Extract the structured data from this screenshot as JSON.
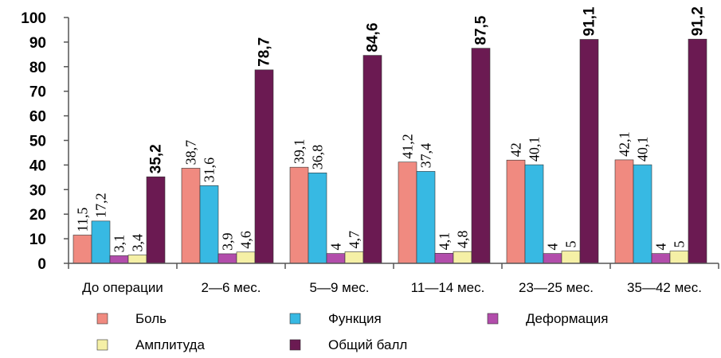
{
  "chart_data": {
    "type": "bar",
    "categories": [
      "До операции",
      "2—6 мес.",
      "5—9 мес.",
      "11—14 мес.",
      "23—25 мес.",
      "35—42 мес."
    ],
    "ylim": [
      0,
      100
    ],
    "yticks": [
      0,
      10,
      20,
      30,
      40,
      50,
      60,
      70,
      80,
      90,
      100
    ],
    "grid": false,
    "legend_position": "bottom",
    "series": [
      {
        "name": "Боль",
        "color": "#f08a80",
        "values": [
          11.5,
          38.7,
          39.1,
          41.2,
          42,
          42.1
        ],
        "labels": [
          "11,5",
          "38,7",
          "39,1",
          "41,2",
          "42",
          "42,1"
        ]
      },
      {
        "name": "Функция",
        "color": "#37b9e3",
        "values": [
          17.2,
          31.6,
          36.8,
          37.4,
          40.1,
          40.1
        ],
        "labels": [
          "17,2",
          "31,6",
          "36,8",
          "37,4",
          "40,1",
          "40,1"
        ]
      },
      {
        "name": "Деформация",
        "color": "#b24dab",
        "values": [
          3.1,
          3.9,
          4,
          4.1,
          4,
          4
        ],
        "labels": [
          "3,1",
          "3,9",
          "4",
          "4,1",
          "4",
          "4"
        ]
      },
      {
        "name": "Амплитуда",
        "color": "#f5f0a6",
        "values": [
          3.4,
          4.6,
          4.7,
          4.8,
          5,
          5
        ],
        "labels": [
          "3,4",
          "4,6",
          "4,7",
          "4,8",
          "5",
          "5"
        ]
      },
      {
        "name": "Общий балл",
        "color": "#6b1a52",
        "values": [
          35.2,
          78.7,
          84.6,
          87.5,
          91.1,
          91.2
        ],
        "labels": [
          "35,2",
          "78,7",
          "84,6",
          "87,5",
          "91,1",
          "91,2"
        ]
      }
    ]
  }
}
